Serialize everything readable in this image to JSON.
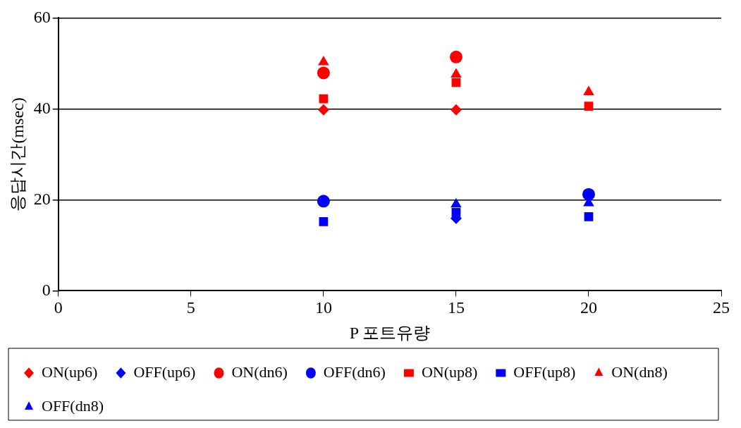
{
  "chart_data": {
    "type": "scatter",
    "xlabel": "P 포트유량",
    "ylabel": "응답시간(msec)",
    "x": [
      10,
      15,
      20
    ],
    "xlim": [
      0,
      25
    ],
    "xticks": [
      0,
      5,
      10,
      15,
      20,
      25
    ],
    "ylim": [
      0,
      60
    ],
    "yticks": [
      0,
      20,
      40,
      60
    ],
    "grid": "y",
    "legend": "bottom",
    "series": [
      {
        "name": "ON(up6)",
        "color": "#ff0000",
        "marker": "diamond",
        "values": [
          39.8,
          39.8,
          null
        ]
      },
      {
        "name": "OFF(up6)",
        "color": "#0000ff",
        "marker": "diamond",
        "values": [
          null,
          15.9,
          null
        ]
      },
      {
        "name": "ON(dn6)",
        "color": "#ff0000",
        "marker": "circle",
        "values": [
          47.9,
          51.4,
          null
        ]
      },
      {
        "name": "OFF(dn6)",
        "color": "#0000ff",
        "marker": "circle",
        "values": [
          19.7,
          null,
          21.2
        ]
      },
      {
        "name": "ON(up8)",
        "color": "#ff0000",
        "marker": "square",
        "values": [
          42.2,
          45.8,
          40.6
        ]
      },
      {
        "name": "OFF(up8)",
        "color": "#0000ff",
        "marker": "square",
        "values": [
          15.2,
          17.2,
          16.3
        ]
      },
      {
        "name": "ON(dn8)",
        "color": "#ff0000",
        "marker": "triangle",
        "values": [
          50.3,
          47.6,
          43.7
        ]
      },
      {
        "name": "OFF(dn8)",
        "color": "#0000ff",
        "marker": "triangle",
        "values": [
          null,
          19,
          19.3
        ]
      }
    ]
  }
}
